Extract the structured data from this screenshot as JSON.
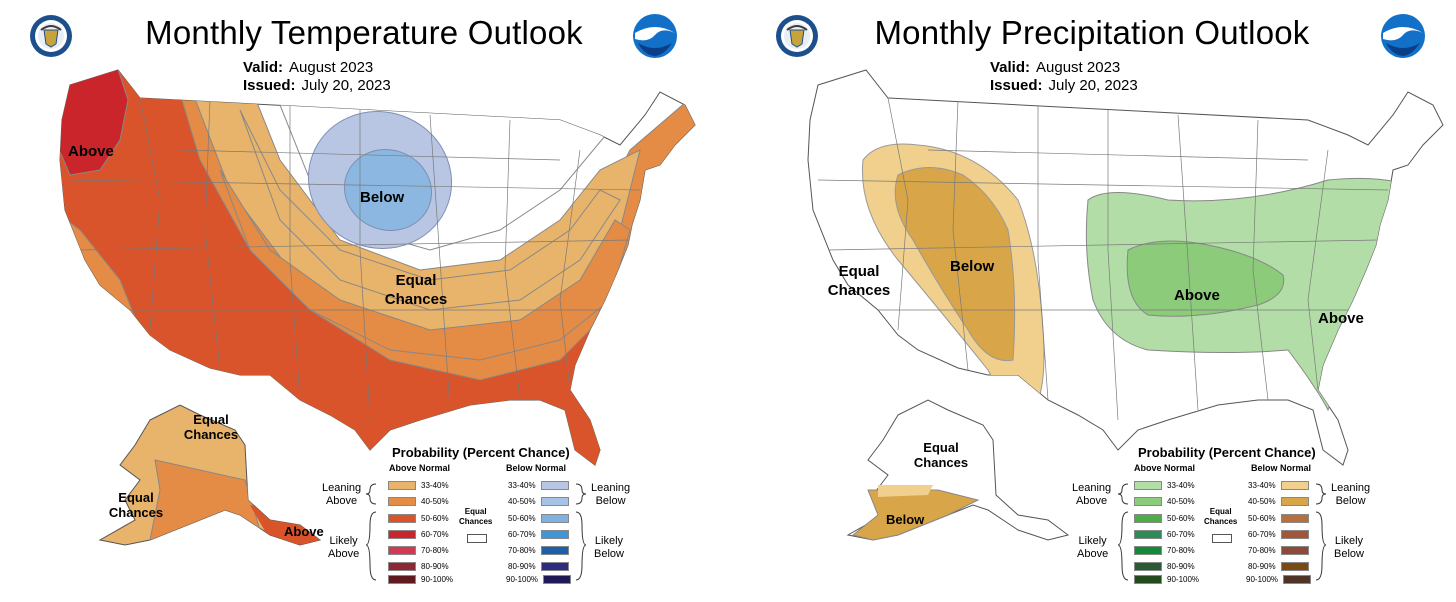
{
  "panels": {
    "temperature": {
      "title": "Monthly Temperature Outlook",
      "valid_label": "Valid:",
      "valid_value": "August 2023",
      "issued_label": "Issued:",
      "issued_value": "July 20, 2023",
      "map_labels": {
        "above": "Above",
        "below": "Below",
        "equal_1": "Equal",
        "equal_2": "Chances",
        "ak_equal_top_1": "Equal",
        "ak_equal_top_2": "Chances",
        "ak_equal_left_1": "Equal",
        "ak_equal_left_2": "Chances",
        "ak_above": "Above"
      },
      "legend": {
        "title": "Probability (Percent Chance)",
        "above_head": "Above Normal",
        "below_head": "Below Normal",
        "leaning_above_1": "Leaning",
        "leaning_above_2": "Above",
        "likely_above_1": "Likely",
        "likely_above_2": "Above",
        "leaning_below_1": "Leaning",
        "leaning_below_2": "Below",
        "likely_below_1": "Likely",
        "likely_below_2": "Below",
        "equal_1": "Equal",
        "equal_2": "Chances",
        "above_rows": [
          {
            "label": "33-40%",
            "color": "#E8B36A"
          },
          {
            "label": "40-50%",
            "color": "#E48B45"
          },
          {
            "label": "50-60%",
            "color": "#D9542B"
          },
          {
            "label": "60-70%",
            "color": "#C9252A"
          },
          {
            "label": "70-80%",
            "color": "#D23A53"
          },
          {
            "label": "80-90%",
            "color": "#8E2834"
          },
          {
            "label": "90-100%",
            "color": "#5E1A1E"
          }
        ],
        "below_rows": [
          {
            "label": "33-40%",
            "color": "#B8C6E4"
          },
          {
            "label": "40-50%",
            "color": "#A6C3E6"
          },
          {
            "label": "50-60%",
            "color": "#7FB2E0"
          },
          {
            "label": "60-70%",
            "color": "#3F95D6"
          },
          {
            "label": "70-80%",
            "color": "#1D5FA8"
          },
          {
            "label": "80-90%",
            "color": "#2B2B80"
          },
          {
            "label": "90-100%",
            "color": "#1F1A55"
          }
        ]
      }
    },
    "precipitation": {
      "title": "Monthly Precipitation Outlook",
      "valid_label": "Valid:",
      "valid_value": "August 2023",
      "issued_label": "Issued:",
      "issued_value": "July 20, 2023",
      "map_labels": {
        "equal_1": "Equal",
        "equal_2": "Chances",
        "below": "Below",
        "above_main": "Above",
        "above_coast": "Above",
        "ak_equal_1": "Equal",
        "ak_equal_2": "Chances",
        "ak_below": "Below"
      },
      "legend": {
        "title": "Probability (Percent Chance)",
        "above_head": "Above Normal",
        "below_head": "Below Normal",
        "leaning_above_1": "Leaning",
        "leaning_above_2": "Above",
        "likely_above_1": "Likely",
        "likely_above_2": "Above",
        "leaning_below_1": "Leaning",
        "leaning_below_2": "Below",
        "likely_below_1": "Likely",
        "likely_below_2": "Below",
        "equal_1": "Equal",
        "equal_2": "Chances",
        "above_rows": [
          {
            "label": "33-40%",
            "color": "#B2DDA6"
          },
          {
            "label": "40-50%",
            "color": "#8CCB7A"
          },
          {
            "label": "50-60%",
            "color": "#4DAE48"
          },
          {
            "label": "60-70%",
            "color": "#2E8B57"
          },
          {
            "label": "70-80%",
            "color": "#118A3A"
          },
          {
            "label": "80-90%",
            "color": "#2C5A36"
          },
          {
            "label": "90-100%",
            "color": "#234A1C"
          }
        ],
        "below_rows": [
          {
            "label": "33-40%",
            "color": "#F0D08C"
          },
          {
            "label": "40-50%",
            "color": "#D8A548"
          },
          {
            "label": "50-60%",
            "color": "#B5703E"
          },
          {
            "label": "60-70%",
            "color": "#A35538"
          },
          {
            "label": "70-80%",
            "color": "#8E4A38"
          },
          {
            "label": "80-90%",
            "color": "#7A4A14"
          },
          {
            "label": "90-100%",
            "color": "#4D3426"
          }
        ]
      }
    }
  }
}
